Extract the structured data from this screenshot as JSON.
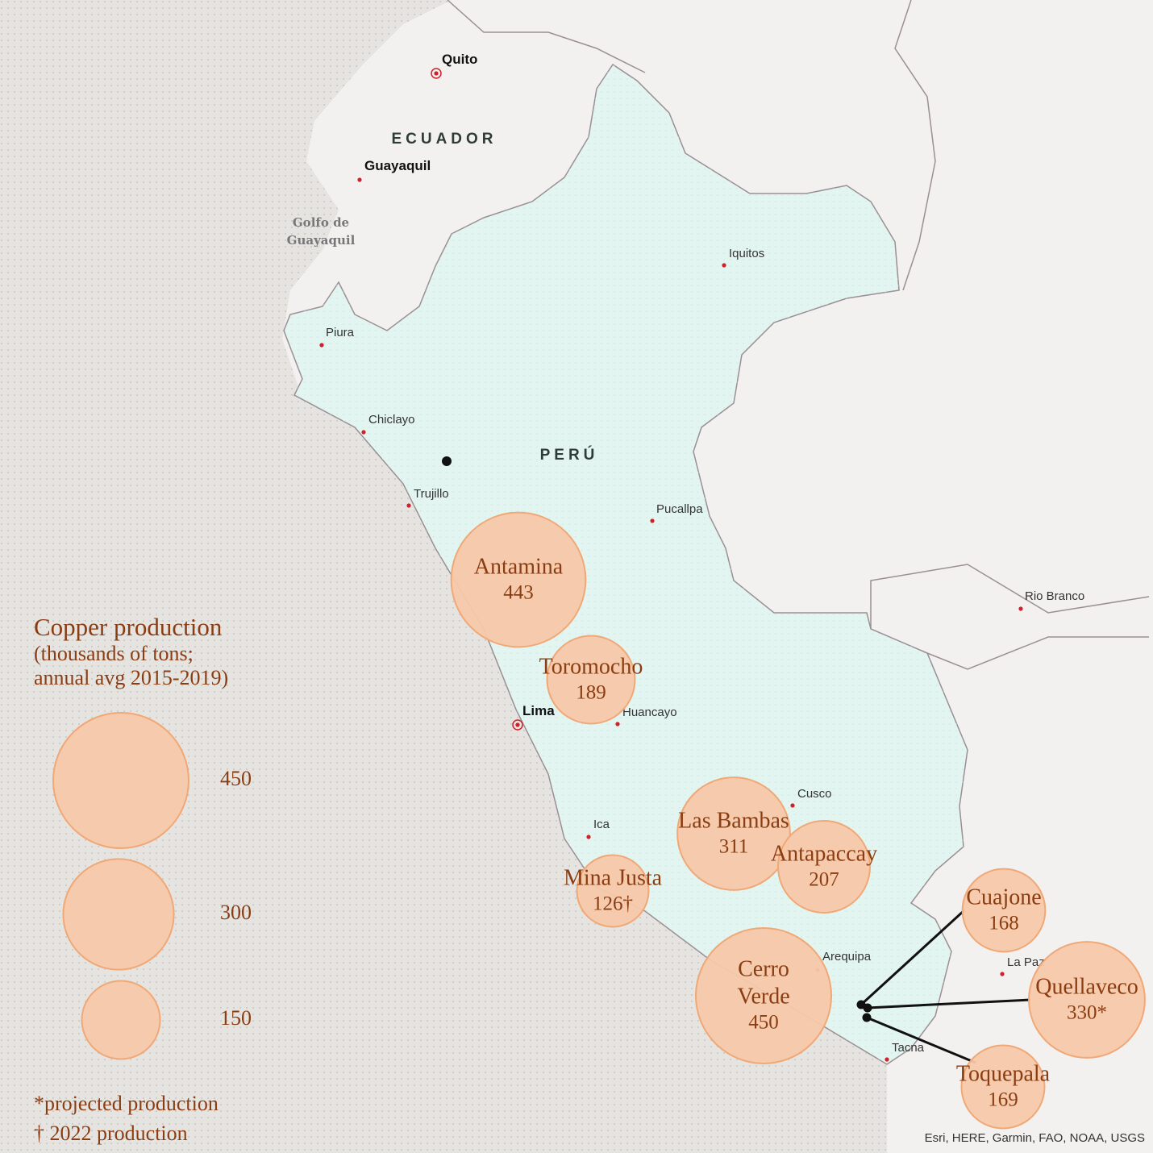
{
  "map": {
    "countries": [
      "ECUADOR",
      "PERÚ"
    ],
    "water": {
      "lines": [
        "Golfo de",
        "Guayaquil"
      ]
    },
    "places": [
      {
        "label": "Quito",
        "capital": true
      },
      {
        "label": "Guayaquil",
        "capital": false
      },
      {
        "label": "Iquitos",
        "capital": false
      },
      {
        "label": "Piura",
        "capital": false
      },
      {
        "label": "Chiclayo",
        "capital": false
      },
      {
        "label": "Trujillo",
        "capital": false
      },
      {
        "label": "Pucallpa",
        "capital": false
      },
      {
        "label": "Rio Branco",
        "capital": false
      },
      {
        "label": "Lima",
        "capital": true
      },
      {
        "label": "Huancayo",
        "capital": false
      },
      {
        "label": "Cusco",
        "capital": false
      },
      {
        "label": "Ica",
        "capital": false
      },
      {
        "label": "Arequipa",
        "capital": false
      },
      {
        "label": "La Paz",
        "capital": false
      },
      {
        "label": "Tacna",
        "capital": false
      }
    ],
    "mines": [
      {
        "name": "Antamina",
        "value": 443
      },
      {
        "name": "Toromocho",
        "value": 189
      },
      {
        "name": "Las Bambas",
        "value": 311
      },
      {
        "name": "Antapaccay",
        "value": 207
      },
      {
        "name": "Mina Justa",
        "value": 126,
        "value_label": "126†"
      },
      {
        "name": "Cerro Verde",
        "value": 450
      },
      {
        "name": "Cuajone",
        "value": 168
      },
      {
        "name": "Quellaveco",
        "value": 330,
        "value_label": "330*"
      },
      {
        "name": "Toquepala",
        "value": 169
      }
    ],
    "legend": {
      "title": "Copper production",
      "subtitle": [
        "(thousands of tons;",
        "annual avg 2015-2019)"
      ],
      "sizes": [
        450,
        300,
        150
      ],
      "notes": [
        "*projected production",
        "† 2022 production"
      ]
    },
    "attribution": "Esri, HERE, Garmin, FAO, NOAA, USGS"
  }
}
